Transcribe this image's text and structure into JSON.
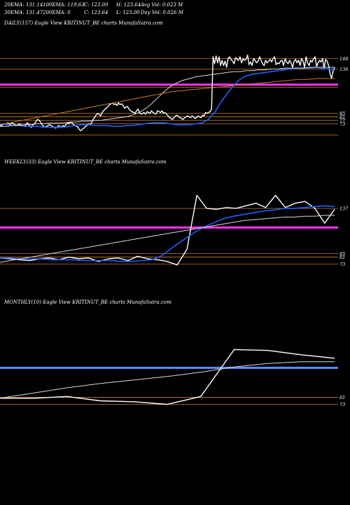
{
  "header": {
    "row1": [
      "20EMA: 131.14",
      "100EMA: 119.63",
      "C: 123.00",
      "H: 123.64",
      "Avg Vol: 0.023 M"
    ],
    "row2": [
      "30EMA: 131.47",
      "200EMA: 0",
      "C: 123.64",
      "L: 123.00",
      "Day Vol: 0.026  M"
    ]
  },
  "colors": {
    "price": "#ffffff",
    "ema_fast": "#1f5fff",
    "ema_slow": "#d8d8d8",
    "ema_long": "#c87a2a",
    "hline": "#c87a2a",
    "magenta": "#ff33ff",
    "blue_band": "#5a8cff"
  },
  "chart_data": [
    {
      "type": "line",
      "title": "DAILY(157) Eagle   View  KRITINUT_BE charts MunafaSutra.com",
      "y_ticks": [
        "148",
        "136",
        "85",
        "81",
        "77",
        "73"
      ],
      "ylim": [
        50,
        175
      ],
      "hlines": [
        148,
        136,
        115,
        85,
        81,
        77,
        73,
        60
      ],
      "magenta_level": 118,
      "series": [
        {
          "role": "price",
          "values": [
            71,
            71,
            72,
            73,
            72,
            74,
            73,
            72,
            74,
            73,
            72,
            71,
            72,
            73,
            72,
            71,
            70,
            71,
            74,
            73,
            70,
            69,
            72,
            73,
            76,
            78,
            77,
            75,
            72,
            70,
            69,
            70,
            71,
            72,
            71,
            70,
            69,
            68,
            69,
            71,
            70,
            69,
            71,
            70,
            72,
            74,
            73,
            75,
            74,
            72,
            71,
            70,
            69,
            66,
            65,
            67,
            68,
            70,
            71,
            73,
            72,
            74,
            78,
            80,
            83,
            85,
            84,
            82,
            86,
            88,
            90,
            91,
            93,
            95,
            96,
            97,
            95,
            96,
            94,
            97,
            95,
            96,
            94,
            91,
            92,
            93,
            90,
            88,
            87,
            86,
            85,
            88,
            90,
            86,
            84,
            85,
            86,
            84,
            87,
            86,
            85,
            88,
            86,
            85,
            84,
            88,
            87,
            86,
            88,
            85,
            86,
            84,
            82,
            80,
            79,
            78,
            80,
            82,
            83,
            81,
            80,
            79,
            78,
            80,
            81,
            82,
            81,
            80,
            82,
            81,
            79,
            80,
            82,
            81,
            80,
            83,
            82,
            86,
            85,
            86,
            87,
            90,
            150,
            142,
            151,
            143,
            150,
            140,
            146,
            140,
            145,
            138,
            148,
            150,
            147,
            145,
            142,
            149,
            147,
            146,
            150,
            143,
            148,
            146,
            147,
            152,
            141,
            144,
            140,
            148,
            146,
            143,
            145,
            150,
            146,
            142,
            140,
            146,
            143,
            145,
            147,
            144,
            148,
            150,
            141,
            143,
            142,
            145,
            146,
            140,
            148,
            144,
            142,
            146,
            143,
            138,
            145,
            147,
            143,
            146,
            140,
            148,
            145,
            138,
            150,
            143,
            140,
            146,
            144,
            148,
            150,
            139,
            143,
            146,
            144,
            148,
            136,
            147,
            145,
            140,
            130,
            125,
            134,
            138
          ]
        },
        {
          "role": "ema-fast",
          "values": [
            73,
            72,
            71,
            71,
            70,
            70,
            70,
            69,
            69,
            69,
            69,
            70,
            71,
            72,
            72,
            71,
            71,
            71,
            70,
            70,
            71,
            71,
            72,
            73,
            74,
            74,
            74,
            73,
            72,
            72,
            72,
            73,
            74,
            78,
            86,
            98,
            108,
            117,
            124,
            128,
            130,
            131,
            132,
            133,
            134,
            135,
            136,
            137,
            137,
            137,
            138,
            137,
            136,
            135
          ]
        },
        {
          "role": "ema-slow",
          "values": [
            70,
            70,
            71,
            71,
            72,
            72,
            73,
            73,
            74,
            74,
            74,
            75,
            75,
            76,
            76,
            77,
            77,
            78,
            79,
            80,
            81,
            83,
            86,
            90,
            96,
            103,
            110,
            116,
            120,
            123,
            125,
            127,
            128,
            129,
            130,
            131,
            132,
            133,
            133,
            134,
            134,
            135,
            135,
            136,
            136,
            137,
            137,
            137,
            137,
            138,
            138,
            138,
            138,
            138
          ]
        },
        {
          "role": "ema-long",
          "values": [
            72,
            74,
            76,
            78,
            80,
            82,
            84,
            86,
            88,
            90,
            92,
            94,
            96,
            98,
            100,
            102,
            104,
            106,
            108,
            110,
            111,
            112,
            113,
            114,
            115,
            116,
            117,
            118,
            119,
            120,
            121,
            122,
            123,
            124,
            124,
            125,
            125,
            125
          ]
        }
      ]
    },
    {
      "type": "line",
      "title": "WEEKLY(33) Eagle   View  KRITINUT_BE charts MunafaSutra.com",
      "y_ticks": [
        "137",
        "85",
        "81",
        "73"
      ],
      "ylim": [
        50,
        175
      ],
      "hlines": [
        137,
        85,
        81,
        73
      ],
      "magenta_level": 115,
      "series": [
        {
          "role": "price",
          "values": [
            80,
            79,
            78,
            77,
            79,
            80,
            78,
            81,
            79,
            80,
            76,
            79,
            80,
            77,
            82,
            79,
            78,
            76,
            72,
            90,
            152,
            137,
            136,
            138,
            137,
            140,
            143,
            138,
            152,
            138,
            143,
            145,
            137,
            120,
            136
          ]
        },
        {
          "role": "ema-fast",
          "values": [
            80,
            80,
            79,
            79,
            79,
            78,
            78,
            78,
            77,
            77,
            77,
            77,
            76,
            76,
            77,
            78,
            83,
            92,
            100,
            108,
            115,
            120,
            125,
            128,
            130,
            132,
            134,
            135,
            137,
            137,
            138,
            139,
            140,
            139
          ]
        },
        {
          "role": "ema-slow",
          "values": [
            75,
            77,
            79,
            81,
            83,
            85,
            87,
            89,
            91,
            93,
            95,
            97,
            99,
            101,
            103,
            105,
            107,
            109,
            111,
            113,
            115,
            117,
            119,
            121,
            123,
            124,
            125,
            126,
            127,
            127,
            128,
            128,
            129,
            129
          ]
        }
      ]
    },
    {
      "type": "line",
      "title": "MONTHLY(10) Eagle   View  KRITINUT_BE charts MunafaSutra.com",
      "y_ticks": [
        "81",
        "73"
      ],
      "ylim": [
        50,
        175
      ],
      "hlines": [
        81,
        73
      ],
      "blue_level": 115,
      "series": [
        {
          "role": "price",
          "values": [
            80,
            80,
            82,
            77,
            76,
            73,
            82,
            136,
            135,
            130,
            126
          ]
        },
        {
          "role": "ema-slow",
          "values": [
            80,
            86,
            92,
            97,
            101,
            105,
            110,
            116,
            120,
            122,
            122
          ]
        }
      ]
    }
  ]
}
